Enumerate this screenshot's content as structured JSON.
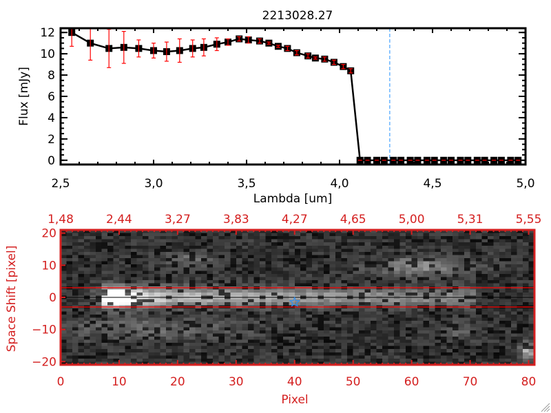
{
  "chart_data": [
    {
      "type": "line",
      "title": "2213028.27",
      "xlabel": "Lambda [um]",
      "ylabel": "Flux [mJy]",
      "xlim": [
        2.5,
        5.0
      ],
      "ylim": [
        -0.4,
        12.4
      ],
      "xticks": [
        "2.5",
        "3.0",
        "3.5",
        "4.0",
        "4.5",
        "5.0"
      ],
      "yticks": [
        "0",
        "2",
        "4",
        "6",
        "8",
        "10",
        "12"
      ],
      "marker_line_color": "#000000",
      "errorbar_color": "#ff0000",
      "vline": {
        "x": 4.27,
        "color": "#2090ff",
        "style": "dashed"
      },
      "x": [
        2.56,
        2.66,
        2.76,
        2.84,
        2.92,
        3.0,
        3.07,
        3.14,
        3.21,
        3.27,
        3.34,
        3.4,
        3.46,
        3.51,
        3.57,
        3.62,
        3.67,
        3.72,
        3.77,
        3.83,
        3.87,
        3.92,
        3.97,
        4.02,
        4.06,
        4.11,
        4.15,
        4.2,
        4.24,
        4.29,
        4.33,
        4.38,
        4.42,
        4.47,
        4.51,
        4.56,
        4.6,
        4.65,
        4.69,
        4.74,
        4.78,
        4.83,
        4.87,
        4.92,
        4.96
      ],
      "y": [
        12.0,
        11.0,
        10.5,
        10.6,
        10.5,
        10.3,
        10.2,
        10.3,
        10.5,
        10.6,
        10.9,
        11.1,
        11.4,
        11.3,
        11.2,
        11.0,
        10.7,
        10.5,
        10.1,
        9.8,
        9.6,
        9.5,
        9.2,
        8.8,
        8.4,
        0,
        0,
        0,
        0,
        0,
        0,
        0,
        0,
        0,
        0,
        0,
        0,
        0,
        0,
        0,
        0,
        0,
        0,
        0,
        0
      ],
      "yerr": [
        1.3,
        1.6,
        1.8,
        1.5,
        0.8,
        0.7,
        0.9,
        1.1,
        0.8,
        0.8,
        0.6,
        0.3,
        0.2,
        0.3,
        0.2,
        0.1,
        0.1,
        0.2,
        0.2,
        0.2,
        0.1,
        0.2,
        0.2,
        0.2,
        0.2,
        0,
        0,
        0,
        0,
        0,
        0,
        0,
        0,
        0,
        0,
        0,
        0,
        0,
        0,
        0,
        0,
        0,
        0,
        0,
        0
      ]
    },
    {
      "type": "heatmap",
      "colormap": "grayscale",
      "axis_color": "#d42020",
      "xlabel": "Pixel",
      "ylabel": "Space Shift [pixel]",
      "xlim": [
        0,
        81
      ],
      "ylim": [
        -21,
        21
      ],
      "xticks": [
        "0",
        "10",
        "20",
        "30",
        "40",
        "50",
        "60",
        "70",
        "80"
      ],
      "yticks": [
        "-20",
        "-10",
        "0",
        "10",
        "20"
      ],
      "top_xticks": [
        "1.48",
        "2.44",
        "3.27",
        "3.83",
        "4.27",
        "4.65",
        "5.00",
        "5.31",
        "5.55"
      ],
      "aperture_lines": [
        -3,
        3
      ],
      "center_line": 0,
      "marker": {
        "x": 40,
        "y": -1.5,
        "symbol": "star",
        "color": "#2090ff"
      }
    }
  ]
}
